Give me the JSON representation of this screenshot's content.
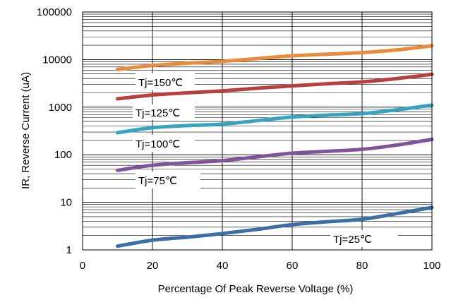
{
  "chart_data": {
    "type": "line",
    "xlabel": "Percentage Of Peak Reverse Voltage (%)",
    "ylabel": "IR, Reverse Current (uA)",
    "xlim": [
      0,
      100
    ],
    "ylim": [
      1,
      100000
    ],
    "yscale": "log",
    "grid": true,
    "x_ticks": [
      "0",
      "20",
      "40",
      "60",
      "80",
      "100"
    ],
    "y_ticks": [
      "1",
      "10",
      "100",
      "1000",
      "10000",
      "100000"
    ],
    "series": [
      {
        "name": "Tj=150℃",
        "color": "#e98b3a",
        "x": [
          10,
          20,
          30,
          40,
          50,
          60,
          70,
          80,
          90,
          100
        ],
        "y": [
          6200,
          7500,
          8400,
          9200,
          10500,
          12000,
          13000,
          14000,
          16000,
          19500
        ]
      },
      {
        "name": "Tj=125℃",
        "color": "#b83f3c",
        "x": [
          10,
          20,
          30,
          40,
          50,
          60,
          70,
          80,
          90,
          100
        ],
        "y": [
          1500,
          1800,
          2000,
          2200,
          2500,
          2800,
          3100,
          3400,
          4000,
          4900
        ]
      },
      {
        "name": "Tj=100℃",
        "color": "#36a3bf",
        "x": [
          10,
          20,
          30,
          40,
          50,
          60,
          70,
          80,
          90,
          100
        ],
        "y": [
          290,
          370,
          410,
          440,
          520,
          620,
          680,
          730,
          880,
          1100
        ]
      },
      {
        "name": "Tj=75℃",
        "color": "#7e559c",
        "x": [
          10,
          20,
          30,
          40,
          50,
          60,
          70,
          80,
          90,
          100
        ],
        "y": [
          47,
          60,
          68,
          75,
          90,
          108,
          118,
          130,
          160,
          210
        ]
      },
      {
        "name": "Tj=25℃",
        "color": "#3b6ea8",
        "x": [
          10,
          20,
          30,
          40,
          50,
          60,
          70,
          80,
          90,
          100
        ],
        "y": [
          1.2,
          1.6,
          1.85,
          2.2,
          2.7,
          3.4,
          3.9,
          4.4,
          5.8,
          7.8
        ]
      }
    ]
  }
}
